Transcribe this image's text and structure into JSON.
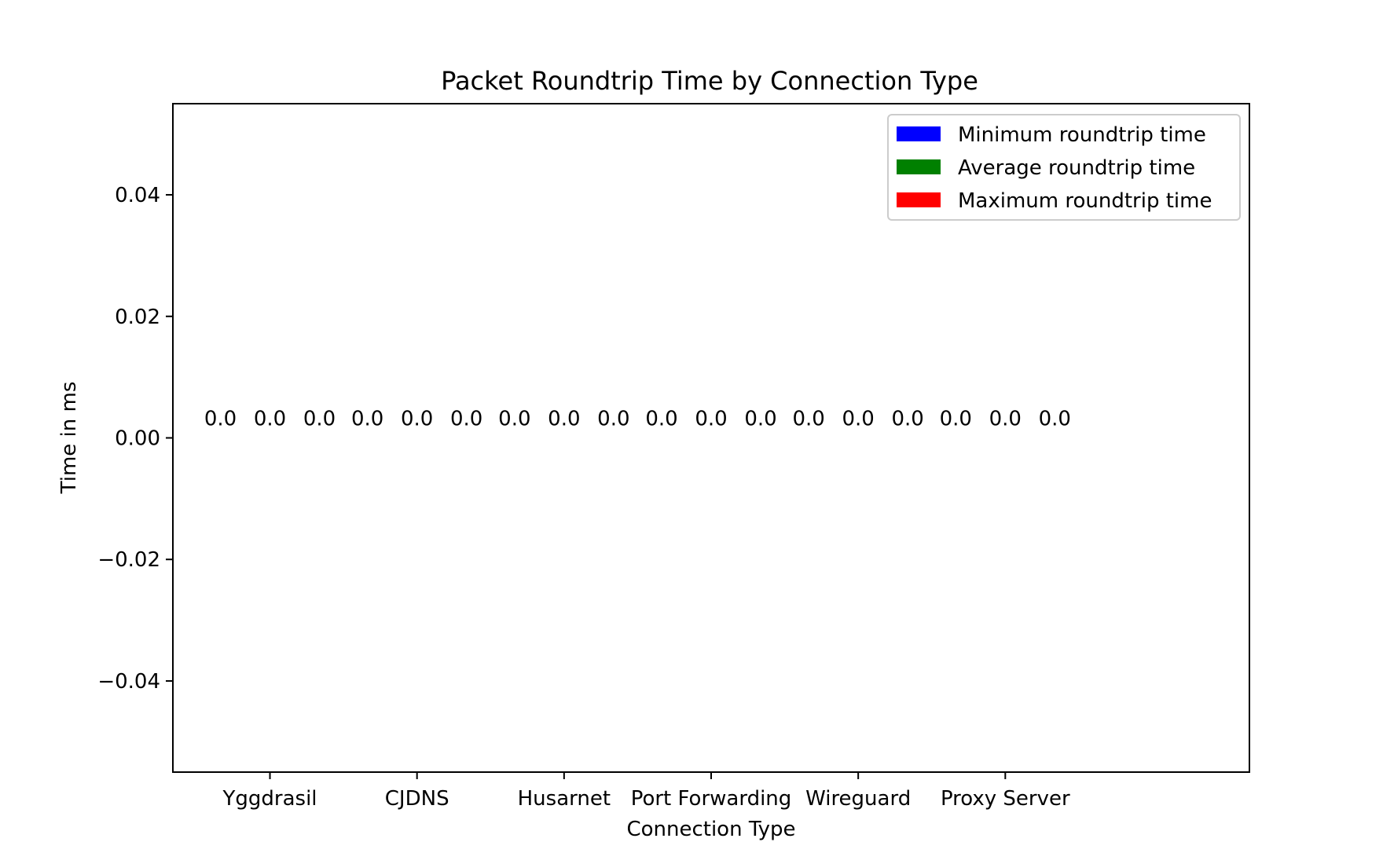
{
  "chart_data": {
    "type": "bar",
    "title": "Packet Roundtrip Time by Connection Type",
    "xlabel": "Connection Type",
    "ylabel": "Time in ms",
    "categories": [
      "Yggdrasil",
      "CJDNS",
      "Husarnet",
      "Port Forwarding",
      "Wireguard",
      "Proxy Server"
    ],
    "series": [
      {
        "name": "Minimum roundtrip time",
        "color": "#0000ff",
        "values": [
          0.0,
          0.0,
          0.0,
          0.0,
          0.0,
          0.0
        ]
      },
      {
        "name": "Average roundtrip time",
        "color": "#008000",
        "values": [
          0.0,
          0.0,
          0.0,
          0.0,
          0.0,
          0.0
        ]
      },
      {
        "name": "Maximum roundtrip time",
        "color": "#ff0000",
        "values": [
          0.0,
          0.0,
          0.0,
          0.0,
          0.0,
          0.0
        ]
      }
    ],
    "data_labels": [
      [
        "0.0",
        "0.0",
        "0.0"
      ],
      [
        "0.0",
        "0.0",
        "0.0"
      ],
      [
        "0.0",
        "0.0",
        "0.0"
      ],
      [
        "0.0",
        "0.0",
        "0.0"
      ],
      [
        "0.0",
        "0.0",
        "0.0"
      ],
      [
        "0.0",
        "0.0",
        "0.0"
      ]
    ],
    "ylim": [
      -0.055,
      0.055
    ],
    "yticks": [
      -0.04,
      -0.02,
      0.0,
      0.02,
      0.04
    ],
    "ytick_labels": [
      "−0.04",
      "−0.02",
      "0.00",
      "0.02",
      "0.04"
    ],
    "grid": false,
    "legend_position": "top-right"
  }
}
